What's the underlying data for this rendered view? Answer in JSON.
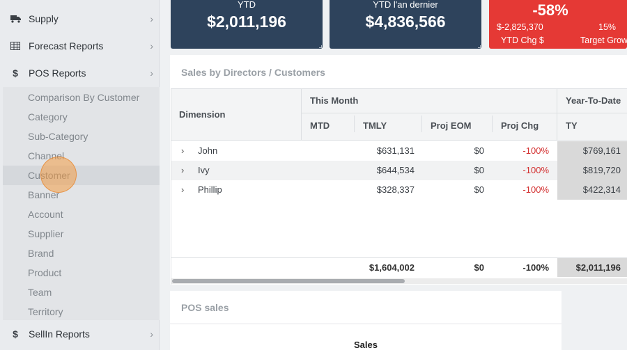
{
  "sidebar": {
    "items": [
      {
        "label": "Supply",
        "icon": "truck-icon"
      },
      {
        "label": "Forecast Reports",
        "icon": "table-icon"
      },
      {
        "label": "POS Reports",
        "icon": "dollar-icon"
      }
    ],
    "pos_subitems": [
      "Comparison By Customer",
      "Category",
      "Sub-Category",
      "Channel",
      "Customer",
      "Banner",
      "Account",
      "Supplier",
      "Brand",
      "Product",
      "Team",
      "Territory"
    ],
    "active_subitem": "Customer",
    "bottom_item": {
      "label": "SellIn Reports",
      "icon": "dollar-icon"
    }
  },
  "kpis": {
    "ytd": {
      "label": "YTD",
      "value": "$2,011,196"
    },
    "ytd_last_year": {
      "label": "YTD l'an dernier",
      "value": "$4,836,566"
    },
    "change": {
      "pct": "-58%",
      "chg_value": "$-2,825,370",
      "chg_label": "YTD Chg $",
      "target_pct": "15%",
      "target_label": "Target Grow"
    }
  },
  "sales_panel": {
    "title": "Sales by Directors / Customers",
    "headers": {
      "dimension": "Dimension",
      "this_month": "This Month",
      "ytd": "Year-To-Date",
      "mtd": "MTD",
      "tmly": "TMLY",
      "proj_eom": "Proj EOM",
      "proj_chg": "Proj Chg",
      "ty": "TY"
    },
    "rows": [
      {
        "name": "John",
        "mtd": "",
        "tmly": "$631,131",
        "proj_eom": "$0",
        "proj_chg": "-100%",
        "ty": "$769,161"
      },
      {
        "name": "Ivy",
        "mtd": "",
        "tmly": "$644,534",
        "proj_eom": "$0",
        "proj_chg": "-100%",
        "ty": "$819,720"
      },
      {
        "name": "Phillip",
        "mtd": "",
        "tmly": "$328,337",
        "proj_eom": "$0",
        "proj_chg": "-100%",
        "ty": "$422,314"
      }
    ],
    "totals": {
      "mtd": "",
      "tmly": "$1,604,002",
      "proj_eom": "$0",
      "proj_chg": "-100%",
      "ty": "$2,011,196"
    },
    "expander_glyph": "›"
  },
  "pos_panel": {
    "title": "POS sales",
    "chart_title": "Sales"
  },
  "colors": {
    "kpi_dark": "#2e435c",
    "kpi_red": "#e53935",
    "negative": "#d32f2f",
    "cursor": "#f39c46"
  }
}
